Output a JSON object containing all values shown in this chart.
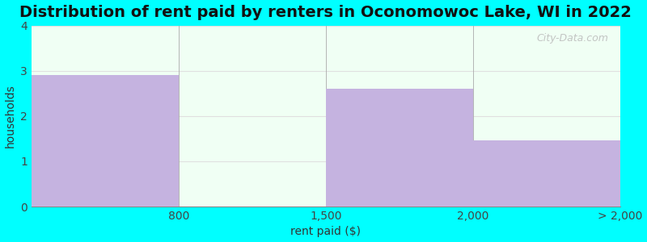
{
  "title": "Distribution of rent paid by renters in Oconomowoc Lake, WI in 2022",
  "categories": [
    "800",
    "1,500",
    "2,000",
    "> 2,000"
  ],
  "values": [
    2.9,
    0,
    2.6,
    1.47
  ],
  "bar_color": "#c5b3e0",
  "background_color": "#00ffff",
  "plot_bg_color": "#f0fff4",
  "xlabel": "rent paid ($)",
  "ylabel": "households",
  "ylim": [
    0,
    4
  ],
  "yticks": [
    0,
    1,
    2,
    3,
    4
  ],
  "title_fontsize": 14,
  "axis_label_fontsize": 10,
  "tick_fontsize": 10,
  "watermark_text": "City-Data.com",
  "bin_edges": [
    0,
    1,
    2,
    3,
    4
  ],
  "grid_color": "#e0e0e0"
}
